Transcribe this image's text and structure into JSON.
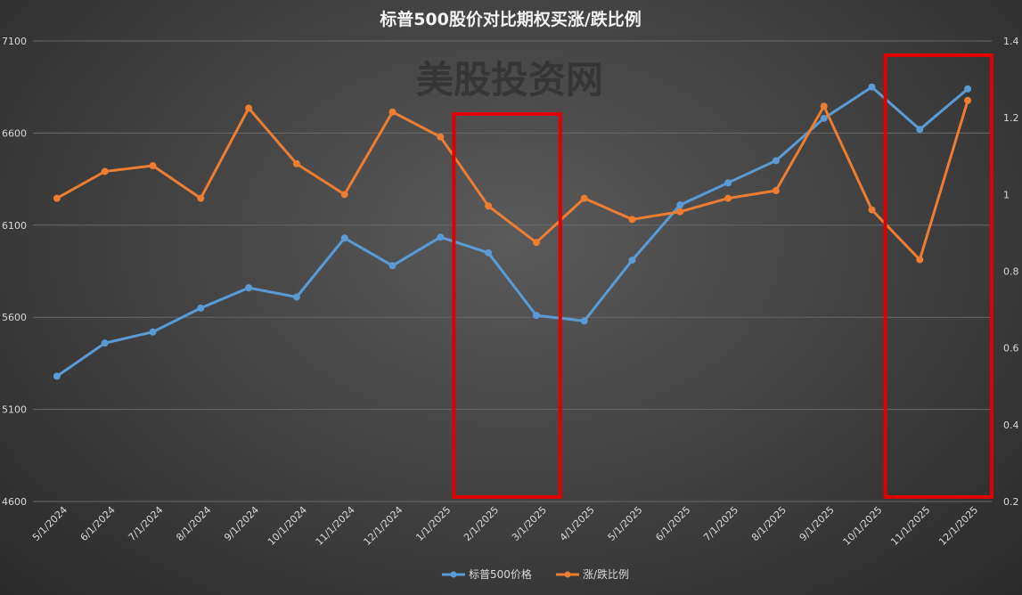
{
  "chart_data": {
    "type": "line",
    "title": "标普500股价对比期权买涨/跌比例",
    "watermark": "美股投资网",
    "categories": [
      "5/1/2024",
      "6/1/2024",
      "7/1/2024",
      "8/1/2024",
      "9/1/2024",
      "10/1/2024",
      "11/1/2024",
      "12/1/2024",
      "1/1/2025",
      "2/1/2025",
      "3/1/2025",
      "4/1/2025",
      "5/1/2025",
      "6/1/2025",
      "7/1/2025",
      "8/1/2025",
      "9/1/2025",
      "10/1/2025",
      "11/1/2025",
      "12/1/2025"
    ],
    "y_left": {
      "min": 4600,
      "max": 7100,
      "ticks": [
        4600,
        5100,
        5600,
        6100,
        6600,
        7100
      ]
    },
    "y_right": {
      "min": 0.2,
      "max": 1.4,
      "ticks": [
        0.2,
        0.4,
        0.6,
        0.8,
        1,
        1.2,
        1.4
      ]
    },
    "series": [
      {
        "name": "标普500价格",
        "axis": "left",
        "color": "#5b9bd5",
        "values": [
          5280,
          5460,
          5520,
          5650,
          5760,
          5710,
          6030,
          5880,
          6035,
          5950,
          5610,
          5580,
          5910,
          6210,
          6330,
          6450,
          6680,
          6850,
          6620,
          6840
        ]
      },
      {
        "name": "涨/跌比例",
        "axis": "right",
        "color": "#ed7d31",
        "values": [
          0.99,
          1.06,
          1.075,
          0.99,
          1.225,
          1.08,
          1.0,
          1.215,
          1.15,
          0.97,
          0.875,
          0.99,
          0.935,
          0.955,
          0.99,
          1.01,
          1.23,
          0.96,
          0.83,
          1.245
        ]
      }
    ],
    "highlights": [
      {
        "from": "2/1/2025",
        "to": "3/1/2025",
        "color": "#e00000"
      },
      {
        "from": "11/1/2025",
        "to": "12/1/2025",
        "color": "#e00000"
      }
    ],
    "grid": "horizontal",
    "legend": "bottom"
  }
}
